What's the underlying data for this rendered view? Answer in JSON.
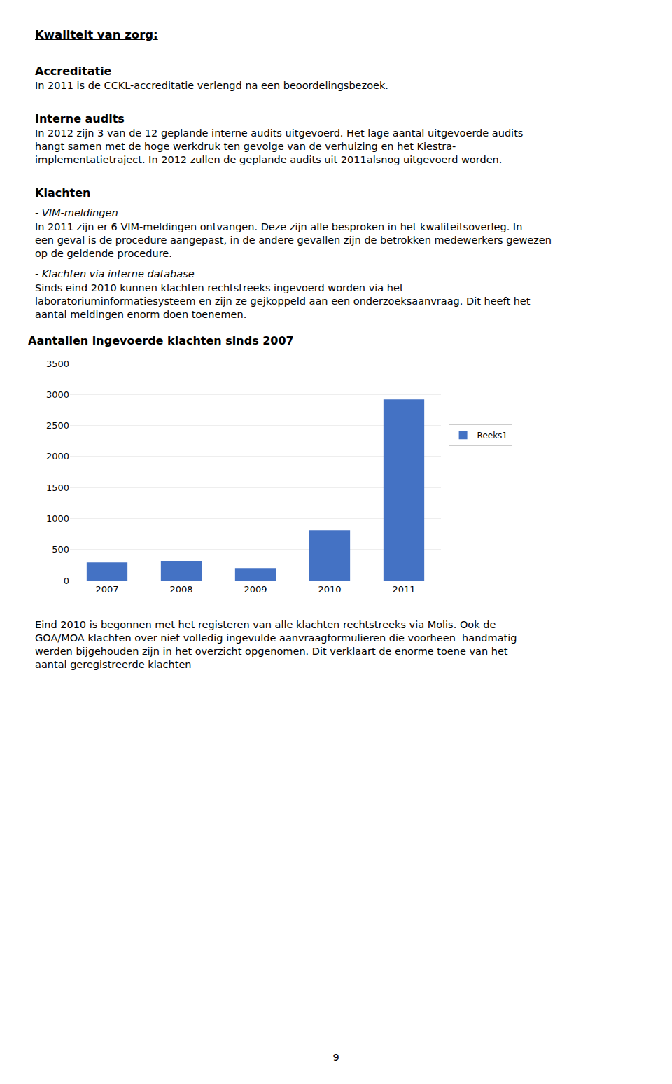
{
  "chart_data": {
    "type": "bar",
    "title": "Aantallen ingevoerde klachten sinds 2007",
    "categories": [
      "2007",
      "2008",
      "2009",
      "2010",
      "2011"
    ],
    "series": [
      {
        "name": "Reeks1",
        "color": "#4472C4",
        "values": [
          290,
          315,
          200,
          810,
          2920
        ]
      }
    ],
    "ylim": [
      0,
      3500
    ],
    "yticks": [
      0,
      500,
      1000,
      1500,
      2000,
      2500,
      3000,
      3500
    ],
    "grid": true,
    "legend": "right",
    "annotations": [
      "Kwaliteit van zorg:",
      "Accreditatie",
      "In 2011 is de CCKL-accreditatie verlengd na een beoordelingsbezoek.",
      "Interne audits",
      "In 2012 zijn 3 van de 12 geplande interne audits uitgevoerd. Het lage aantal uitgevoerde audits",
      "hangt samen met de hoge werkdruk ten gevolge van de verhuizing en het Kiestra-",
      "implementatietraject. In 2012 zullen de geplande audits uit 2011alsnog uitgevoerd worden.",
      "Klachten",
      "- VIM-meldingen",
      "In 2011 zijn er 6 VIM-meldingen ontvangen. Deze zijn alle besproken in het kwaliteitsoverleg. In",
      "een geval is de procedure aangepast, in de andere gevallen zijn de betrokken medewerkers gewezen",
      "op de geldende procedure.",
      "- Klachten via interne database",
      "Sinds eind 2010 kunnen klachten rechtstreeks ingevoerd worden via het",
      "laboratoriuminformatiesysteem en zijn ze gejkoppeld aan een onderzoeksaanvraag. Dit heeft het",
      "aantal meldingen enorm doen toenemen.",
      "Eind 2010 is begonnen met het registeren van alle klachten rechtstreeks via Molis. Ook de",
      "GOA/MOA klachten over niet volledig ingevulde aanvraagformulieren die voorheen  handmatig",
      "werden bijgehouden zijn in het overzicht opgenomen. Dit verklaart de enorme toene van het",
      "aantal geregistreerde klachten",
      "9"
    ]
  }
}
